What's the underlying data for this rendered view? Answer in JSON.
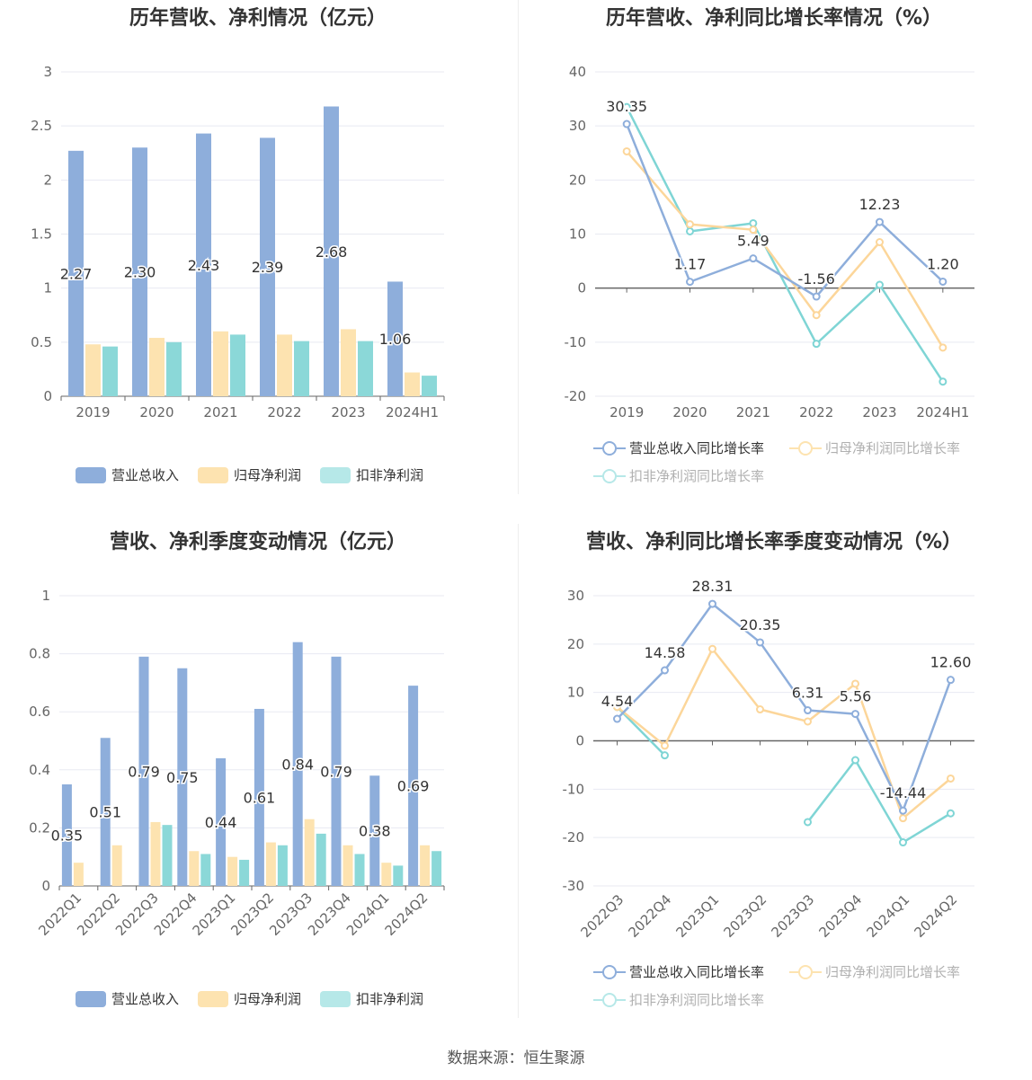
{
  "source_text": "数据来源：恒生聚源",
  "colors": {
    "revenue": "#8eaedb",
    "net_profit": "#fde3b0",
    "deducted": "#8bd8d8",
    "revenue_line": "#8eaedb",
    "net_profit_line": "#fcd69a",
    "deducted_line": "#7fd5d5",
    "grid": "#e8eaf2",
    "axis": "#666666"
  },
  "legend_bar": [
    "营业总收入",
    "归母净利润",
    "扣非净利润"
  ],
  "legend_line": [
    "营业总收入同比增长率",
    "归母净利润同比增长率",
    "扣非净利润同比增长率"
  ],
  "chart_data": [
    {
      "type": "bar",
      "title": "历年营收、净利情况（亿元）",
      "categories": [
        "2019",
        "2020",
        "2021",
        "2022",
        "2023",
        "2024H1"
      ],
      "ylim": [
        0,
        3
      ],
      "yticks": [
        "0",
        "0.5",
        "1",
        "1.5",
        "2",
        "2.5",
        "3"
      ],
      "series": [
        {
          "name": "营业总收入",
          "values": [
            2.27,
            2.3,
            2.43,
            2.39,
            2.68,
            1.06
          ],
          "labels": [
            "2.27",
            "2.30",
            "2.43",
            "2.39",
            "2.68",
            "1.06"
          ]
        },
        {
          "name": "归母净利润",
          "values": [
            0.48,
            0.54,
            0.6,
            0.57,
            0.62,
            0.22
          ]
        },
        {
          "name": "扣非净利润",
          "values": [
            0.46,
            0.5,
            0.57,
            0.51,
            0.51,
            0.19
          ]
        }
      ],
      "grid": true,
      "legend": "bottom"
    },
    {
      "type": "line",
      "title": "历年营收、净利同比增长率情况（%）",
      "categories": [
        "2019",
        "2020",
        "2021",
        "2022",
        "2023",
        "2024H1"
      ],
      "ylim": [
        -20,
        40
      ],
      "yticks": [
        "-20",
        "-10",
        "0",
        "10",
        "20",
        "30",
        "40"
      ],
      "series": [
        {
          "name": "营业总收入同比增长率",
          "values": [
            30.35,
            1.17,
            5.49,
            -1.56,
            12.23,
            1.2
          ],
          "labels": [
            "30.35",
            "1.17",
            "5.49",
            "-1.56",
            "12.23",
            "1.20"
          ]
        },
        {
          "name": "归母净利润同比增长率",
          "values": [
            25.3,
            11.8,
            10.8,
            -5.0,
            8.5,
            -11.0
          ]
        },
        {
          "name": "扣非净利润同比增长率",
          "values": [
            33.5,
            10.5,
            12.0,
            -10.3,
            0.6,
            -17.3
          ]
        }
      ],
      "grid": true,
      "legend": "bottom"
    },
    {
      "type": "bar",
      "title": "营收、净利季度变动情况（亿元）",
      "categories": [
        "2022Q1",
        "2022Q2",
        "2022Q3",
        "2022Q4",
        "2023Q1",
        "2023Q2",
        "2023Q3",
        "2023Q4",
        "2024Q1",
        "2024Q2"
      ],
      "ylim": [
        0,
        1
      ],
      "yticks": [
        "0",
        "0.2",
        "0.4",
        "0.6",
        "0.8",
        "1"
      ],
      "series": [
        {
          "name": "营业总收入",
          "values": [
            0.35,
            0.51,
            0.79,
            0.75,
            0.44,
            0.61,
            0.84,
            0.79,
            0.38,
            0.69
          ],
          "labels": [
            "0.35",
            "0.51",
            "0.79",
            "0.75",
            "0.44",
            "0.61",
            "0.84",
            "0.79",
            "0.38",
            "0.69"
          ]
        },
        {
          "name": "归母净利润",
          "values": [
            0.08,
            0.14,
            0.22,
            0.12,
            0.1,
            0.15,
            0.23,
            0.14,
            0.08,
            0.14
          ]
        },
        {
          "name": "扣非净利润",
          "values": [
            null,
            null,
            0.21,
            0.11,
            0.09,
            0.14,
            0.18,
            0.11,
            0.07,
            0.12
          ]
        }
      ],
      "grid": true,
      "legend": "bottom"
    },
    {
      "type": "line",
      "title": "营收、净利同比增长率季度变动情况（%）",
      "categories": [
        "2022Q3",
        "2022Q4",
        "2023Q1",
        "2023Q2",
        "2023Q3",
        "2023Q4",
        "2024Q1",
        "2024Q2"
      ],
      "ylim": [
        -30,
        30
      ],
      "yticks": [
        "-30",
        "-20",
        "-10",
        "0",
        "10",
        "20",
        "30"
      ],
      "series": [
        {
          "name": "营业总收入同比增长率",
          "values": [
            4.54,
            14.58,
            28.31,
            20.35,
            6.31,
            5.56,
            -14.44,
            12.6
          ],
          "labels": [
            "4.54",
            "14.58",
            "28.31",
            "20.35",
            "6.31",
            "5.56",
            "-14.44",
            "12.60"
          ]
        },
        {
          "name": "归母净利润同比增长率",
          "values": [
            7.0,
            -1.0,
            19.0,
            6.5,
            4.0,
            11.8,
            -16.0,
            -7.8
          ]
        },
        {
          "name": "扣非净利润同比增长率",
          "values": [
            7.0,
            -3.0,
            null,
            null,
            -16.8,
            -4.0,
            -21.0,
            -15.0
          ]
        }
      ],
      "grid": true,
      "legend": "bottom"
    }
  ]
}
